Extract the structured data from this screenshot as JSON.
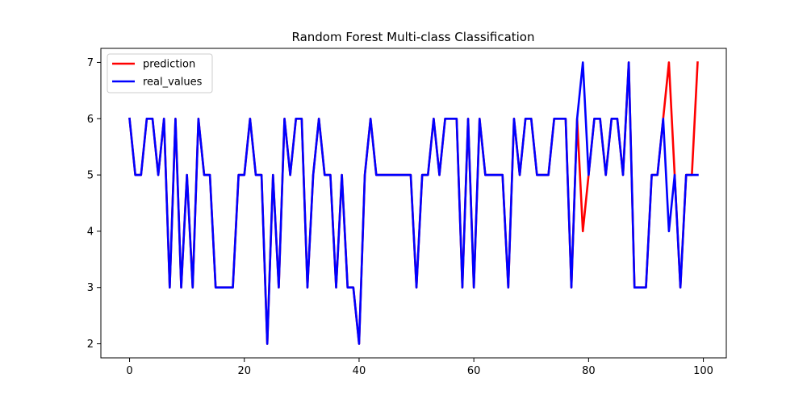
{
  "chart_data": {
    "type": "line",
    "title": "Random Forest Multi-class Classification",
    "xlabel": "",
    "ylabel": "",
    "xlim": [
      -5,
      104
    ],
    "ylim": [
      1.75,
      7.25
    ],
    "xticks": [
      0,
      20,
      40,
      60,
      80,
      100
    ],
    "yticks": [
      2,
      3,
      4,
      5,
      6,
      7
    ],
    "xtick_labels": [
      "0",
      "20",
      "40",
      "60",
      "80",
      "100"
    ],
    "ytick_labels": [
      "2",
      "3",
      "4",
      "5",
      "6",
      "7"
    ],
    "grid": false,
    "legend": "upper left",
    "x": [
      0,
      1,
      2,
      3,
      4,
      5,
      6,
      7,
      8,
      9,
      10,
      11,
      12,
      13,
      14,
      15,
      16,
      17,
      18,
      19,
      20,
      21,
      22,
      23,
      24,
      25,
      26,
      27,
      28,
      29,
      30,
      31,
      32,
      33,
      34,
      35,
      36,
      37,
      38,
      39,
      40,
      41,
      42,
      43,
      44,
      45,
      46,
      47,
      48,
      49,
      50,
      51,
      52,
      53,
      54,
      55,
      56,
      57,
      58,
      59,
      60,
      61,
      62,
      63,
      64,
      65,
      66,
      67,
      68,
      69,
      70,
      71,
      72,
      73,
      74,
      75,
      76,
      77,
      78,
      79,
      80,
      81,
      82,
      83,
      84,
      85,
      86,
      87,
      88,
      89,
      90,
      91,
      92,
      93,
      94,
      95,
      96,
      97,
      98,
      99
    ],
    "series": [
      {
        "name": "prediction",
        "color": "#ff0000",
        "values": [
          6,
          5,
          5,
          6,
          6,
          5,
          6,
          3,
          6,
          3,
          5,
          3,
          6,
          5,
          5,
          3,
          3,
          3,
          3,
          5,
          5,
          6,
          5,
          5,
          2,
          5,
          3,
          6,
          5,
          6,
          6,
          3,
          5,
          6,
          5,
          5,
          3,
          5,
          3,
          3,
          2,
          5,
          6,
          5,
          5,
          5,
          5,
          5,
          5,
          5,
          3,
          5,
          5,
          6,
          5,
          6,
          6,
          6,
          3,
          6,
          3,
          6,
          5,
          5,
          5,
          5,
          3,
          6,
          5,
          6,
          6,
          5,
          5,
          5,
          6,
          6,
          6,
          3,
          6,
          4,
          5,
          6,
          6,
          5,
          6,
          6,
          5,
          7,
          3,
          3,
          3,
          5,
          5,
          6,
          7,
          5,
          3,
          5,
          5,
          7
        ]
      },
      {
        "name": "real_values",
        "color": "#0000ff",
        "values": [
          6,
          5,
          5,
          6,
          6,
          5,
          6,
          3,
          6,
          3,
          5,
          3,
          6,
          5,
          5,
          3,
          3,
          3,
          3,
          5,
          5,
          6,
          5,
          5,
          2,
          5,
          3,
          6,
          5,
          6,
          6,
          3,
          5,
          6,
          5,
          5,
          3,
          5,
          3,
          3,
          2,
          5,
          6,
          5,
          5,
          5,
          5,
          5,
          5,
          5,
          3,
          5,
          5,
          6,
          5,
          6,
          6,
          6,
          3,
          6,
          3,
          6,
          5,
          5,
          5,
          5,
          3,
          6,
          5,
          6,
          6,
          5,
          5,
          5,
          6,
          6,
          6,
          3,
          6,
          7,
          5,
          6,
          6,
          5,
          6,
          6,
          5,
          7,
          3,
          3,
          3,
          5,
          5,
          6,
          4,
          5,
          3,
          5,
          5,
          5
        ]
      }
    ]
  }
}
